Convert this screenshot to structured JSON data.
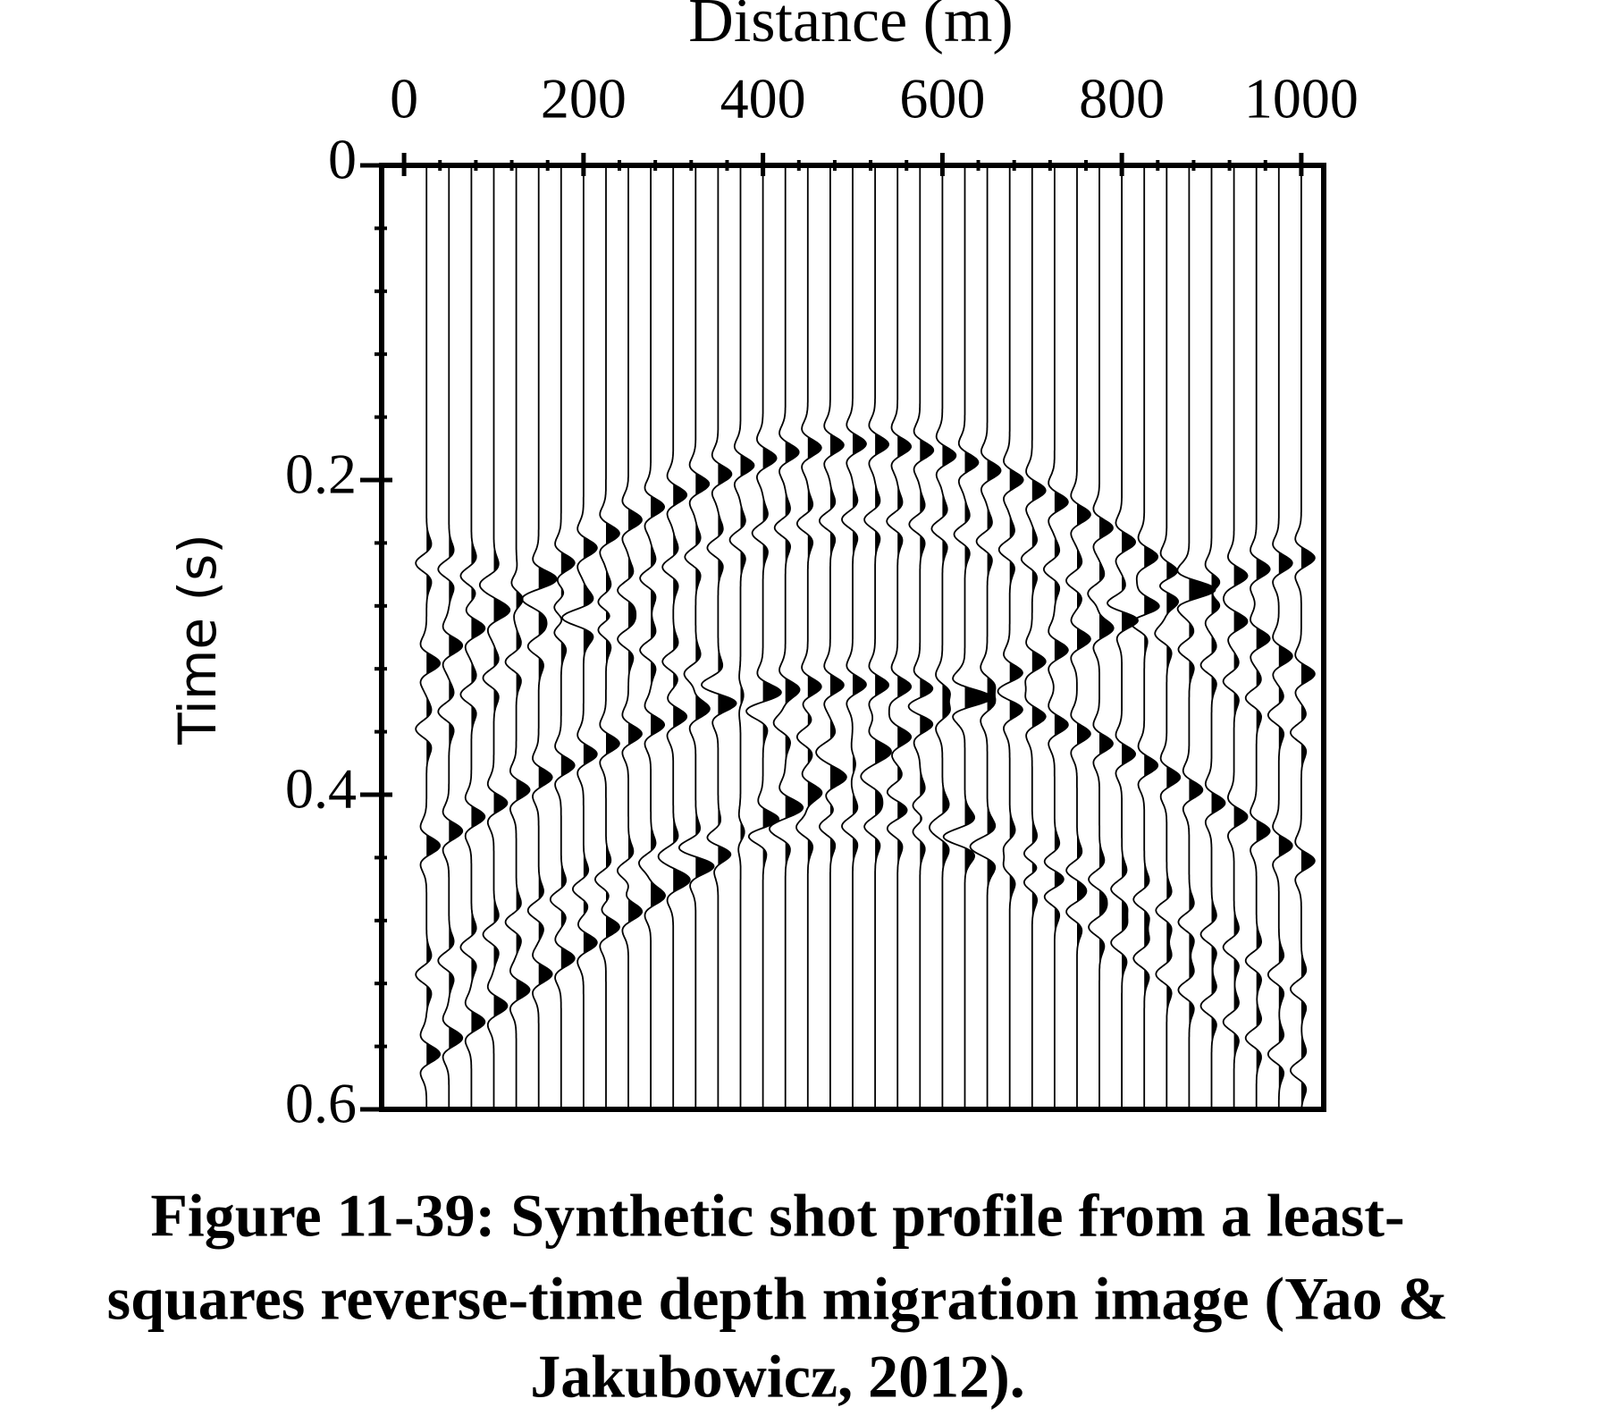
{
  "chart_data": {
    "type": "wiggle",
    "x_label": "Distance (m)",
    "y_label": "Time (s)",
    "caption": [
      "Figure 11-39: Synthetic shot profile from a least-",
      "squares reverse-time depth migration image (Yao &",
      "Jakubowicz, 2012)."
    ],
    "xlim": [
      -25,
      1025
    ],
    "ylim": [
      0,
      0.6
    ],
    "xticks": [
      0,
      200,
      400,
      600,
      800,
      1000
    ],
    "xminor_ticks": [
      40,
      80,
      120,
      160,
      240,
      280,
      320,
      360,
      440,
      480,
      520,
      560,
      640,
      680,
      720,
      760,
      840,
      880,
      920,
      960
    ],
    "yticks": [
      0,
      0.2,
      0.4,
      0.6
    ],
    "yminor_ticks": [
      0.04,
      0.08,
      0.12,
      0.16,
      0.24,
      0.28,
      0.32,
      0.36,
      0.44,
      0.48,
      0.52,
      0.56
    ],
    "traces": [
      25,
      50,
      75,
      100,
      125,
      150,
      175,
      200,
      225,
      250,
      275,
      300,
      325,
      350,
      375,
      400,
      425,
      450,
      475,
      500,
      525,
      550,
      575,
      600,
      625,
      650,
      675,
      700,
      725,
      750,
      775,
      800,
      825,
      850,
      875,
      900,
      925,
      950,
      975,
      1000
    ],
    "events": [
      {
        "apex_x": 505,
        "apex_t": 0.177,
        "velocity": 1830
      },
      {
        "apex_x": 510,
        "apex_t": 0.225,
        "velocity": 1740
      },
      {
        "apex_x": 1150,
        "apex_t": 0.24,
        "velocity": 2200
      },
      {
        "apex_x": -150,
        "apex_t": 0.24,
        "velocity": 2200
      },
      {
        "apex_x": 500,
        "apex_t": 0.33,
        "velocity": 1700
      },
      {
        "apex_x": 500,
        "apex_t": 0.42,
        "velocity": 1600
      }
    ],
    "color": "#000000"
  }
}
